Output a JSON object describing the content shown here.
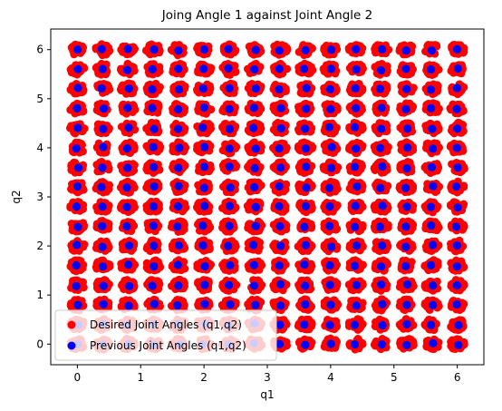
{
  "chart_data": {
    "type": "scatter",
    "title": "Joing Angle 1 against Joint Angle 2",
    "xlabel": "q1",
    "ylabel": "q2",
    "xlim": [
      -0.42,
      6.42
    ],
    "ylim": [
      -0.42,
      6.42
    ],
    "xticks": [
      0,
      1,
      2,
      3,
      4,
      5,
      6
    ],
    "yticks": [
      0,
      1,
      2,
      3,
      4,
      5,
      6
    ],
    "grid": false,
    "legend_position": "lower-left",
    "grid_values": [
      0,
      0.4,
      0.8,
      1.2,
      1.6,
      2.0,
      2.4,
      2.8,
      3.2,
      3.6,
      4.0,
      4.4,
      4.8,
      5.2,
      5.6,
      6.0
    ],
    "series": [
      {
        "name": "Desired Joint Angles (q1,q2)",
        "color": "#ff0000",
        "description_of_points": "dense cluster of red points around every (q1,q2) grid node, spread about ±0.1"
      },
      {
        "name": "Previous Joint Angles (q1,q2)",
        "color": "#0000ff",
        "description_of_points": "one blue point near each (q1,q2) grid node"
      }
    ]
  }
}
